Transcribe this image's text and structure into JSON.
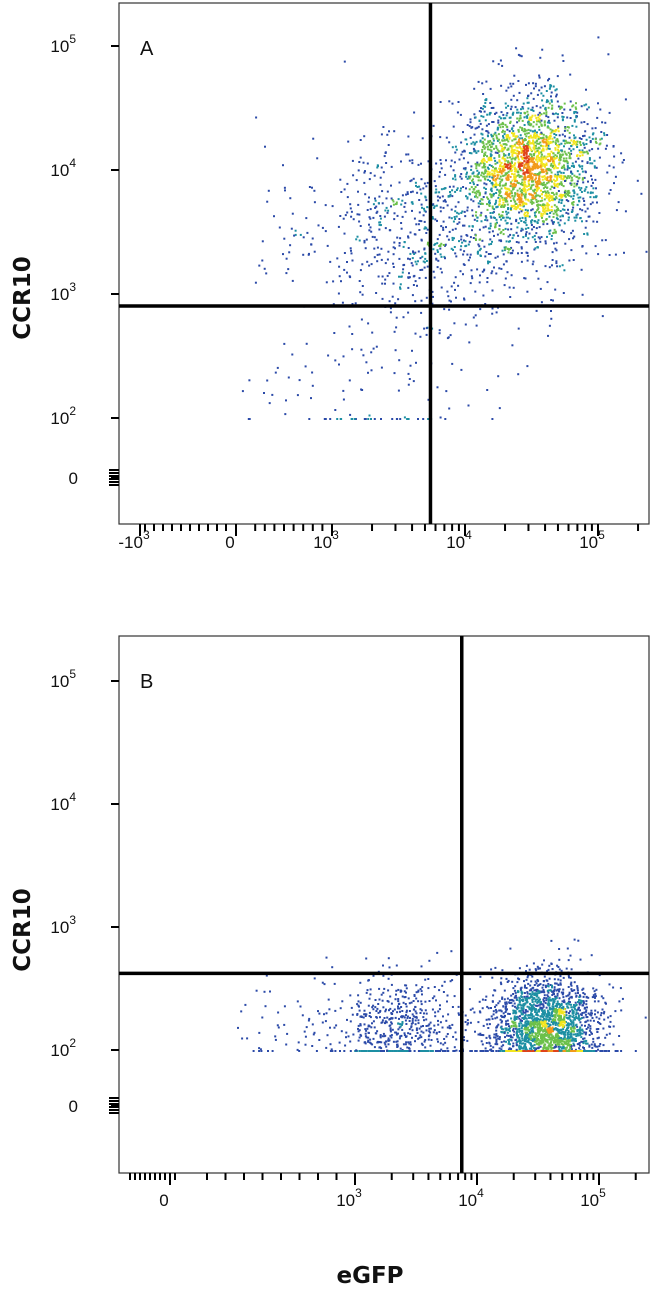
{
  "chart_data": [
    {
      "type": "scatter",
      "panel_label": "A",
      "xlabel": "",
      "ylabel": "CCR10",
      "xticks": [
        {
          "base": "-10",
          "exp": "3",
          "value": -1000
        },
        {
          "base": "0",
          "exp": "",
          "value": 0
        },
        {
          "base": "10",
          "exp": "3",
          "value": 1000
        },
        {
          "base": "10",
          "exp": "4",
          "value": 10000
        },
        {
          "base": "10",
          "exp": "5",
          "value": 100000
        }
      ],
      "yticks": [
        {
          "base": "0",
          "exp": "",
          "value": 0
        },
        {
          "base": "10",
          "exp": "2",
          "value": 100
        },
        {
          "base": "10",
          "exp": "3",
          "value": 1000
        },
        {
          "base": "10",
          "exp": "4",
          "value": 10000
        },
        {
          "base": "10",
          "exp": "5",
          "value": 100000
        }
      ],
      "quadrant_gate": {
        "x": 5500,
        "y": 800
      },
      "populations": [
        {
          "x_center": 30000,
          "y_center": 11000,
          "x_spread_decades": 0.25,
          "y_spread_decades": 0.3,
          "events": 2200
        },
        {
          "x_center": 6000,
          "y_center": 3500,
          "x_spread_decades": 0.5,
          "y_spread_decades": 0.35,
          "events": 800
        },
        {
          "x_center": 2000,
          "y_center": 200,
          "x_spread_decades": 0.5,
          "y_spread_decades": 0.6,
          "events": 150
        }
      ]
    },
    {
      "type": "scatter",
      "panel_label": "B",
      "xlabel": "eGFP",
      "ylabel": "CCR10",
      "xticks": [
        {
          "base": "0",
          "exp": "",
          "value": 0
        },
        {
          "base": "10",
          "exp": "3",
          "value": 1000
        },
        {
          "base": "10",
          "exp": "4",
          "value": 10000
        },
        {
          "base": "10",
          "exp": "5",
          "value": 100000
        }
      ],
      "yticks": [
        {
          "base": "0",
          "exp": "",
          "value": 0
        },
        {
          "base": "10",
          "exp": "2",
          "value": 100
        },
        {
          "base": "10",
          "exp": "3",
          "value": 1000
        },
        {
          "base": "10",
          "exp": "4",
          "value": 10000
        },
        {
          "base": "10",
          "exp": "5",
          "value": 100000
        }
      ],
      "quadrant_gate": {
        "x": 7500,
        "y": 420
      },
      "populations": [
        {
          "x_center": 35000,
          "y_center": 150,
          "x_spread_decades": 0.22,
          "y_spread_decades": 0.22,
          "events": 2200
        },
        {
          "x_center": 2200,
          "y_center": 150,
          "x_spread_decades": 0.3,
          "y_spread_decades": 0.22,
          "events": 650
        }
      ]
    }
  ]
}
